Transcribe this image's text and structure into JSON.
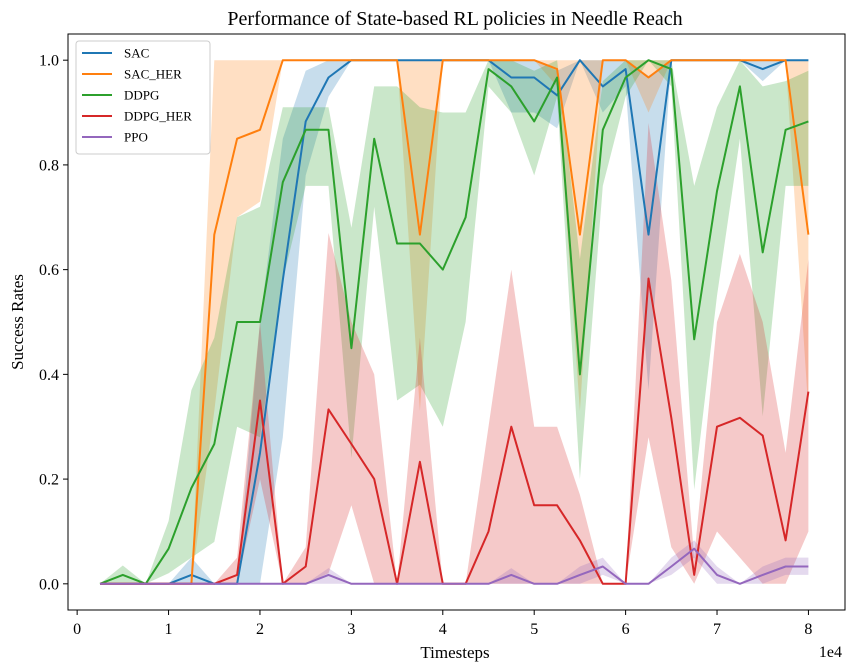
{
  "chart_data": {
    "type": "line",
    "title": "Performance of State-based RL policies in Needle Reach",
    "xlabel": "Timesteps",
    "ylabel": "Success Rates",
    "x_multiplier_label": "1e4",
    "xlim": [
      -0.1,
      8.4
    ],
    "ylim": [
      -0.05,
      1.05
    ],
    "x_ticks": [
      0,
      1,
      2,
      3,
      4,
      5,
      6,
      7,
      8
    ],
    "x_tick_labels": [
      "0",
      "1",
      "2",
      "3",
      "4",
      "5",
      "6",
      "7",
      "8"
    ],
    "y_ticks": [
      0.0,
      0.2,
      0.4,
      0.6,
      0.8,
      1.0
    ],
    "y_tick_labels": [
      "0.0",
      "0.2",
      "0.4",
      "0.6",
      "0.8",
      "1.0"
    ],
    "legend_position": "top-left",
    "grid": false,
    "x": [
      0.25,
      0.5,
      0.75,
      1.0,
      1.25,
      1.5,
      1.75,
      2.0,
      2.25,
      2.5,
      2.75,
      3.0,
      3.25,
      3.5,
      3.75,
      4.0,
      4.25,
      4.5,
      4.75,
      5.0,
      5.25,
      5.5,
      5.75,
      6.0,
      6.25,
      6.5,
      6.75,
      7.0,
      7.25,
      7.5,
      7.75,
      8.0
    ],
    "series": [
      {
        "name": "SAC",
        "color": "#1f77b4",
        "values": [
          0,
          0,
          0,
          0,
          0.017,
          0,
          0,
          0.25,
          0.58,
          0.883,
          0.967,
          1.0,
          1.0,
          1.0,
          1.0,
          1.0,
          1.0,
          1.0,
          0.967,
          0.967,
          0.933,
          1.0,
          0.95,
          0.983,
          0.667,
          1.0,
          1.0,
          1.0,
          1.0,
          0.983,
          1.0,
          1.0
        ],
        "lower": [
          0,
          0,
          0,
          0,
          0,
          0,
          0,
          0,
          0.28,
          0.78,
          0.93,
          1.0,
          1.0,
          1.0,
          1.0,
          1.0,
          1.0,
          1.0,
          0.9,
          0.9,
          0.87,
          1.0,
          0.9,
          0.95,
          0.37,
          1.0,
          1.0,
          1.0,
          1.0,
          0.96,
          1.0,
          1.0
        ],
        "upper": [
          0,
          0,
          0,
          0,
          0.05,
          0,
          0,
          0.5,
          0.85,
          0.98,
          1.0,
          1.0,
          1.0,
          1.0,
          1.0,
          1.0,
          1.0,
          1.0,
          1.0,
          1.0,
          0.98,
          1.0,
          1.0,
          1.0,
          0.97,
          1.0,
          1.0,
          1.0,
          1.0,
          1.0,
          1.0,
          1.0
        ]
      },
      {
        "name": "SAC_HER",
        "color": "#ff7f0e",
        "values": [
          0,
          0,
          0,
          0,
          0,
          0.667,
          0.85,
          0.867,
          1.0,
          1.0,
          1.0,
          1.0,
          1.0,
          1.0,
          0.667,
          1.0,
          1.0,
          1.0,
          1.0,
          1.0,
          0.983,
          0.667,
          1.0,
          1.0,
          0.967,
          1.0,
          1.0,
          1.0,
          1.0,
          1.0,
          1.0,
          0.667
        ],
        "lower": [
          0,
          0,
          0,
          0,
          0,
          0.33,
          0.7,
          0.73,
          1.0,
          1.0,
          1.0,
          1.0,
          1.0,
          1.0,
          0.33,
          1.0,
          1.0,
          1.0,
          1.0,
          1.0,
          0.95,
          0.33,
          1.0,
          1.0,
          0.9,
          1.0,
          1.0,
          1.0,
          1.0,
          1.0,
          1.0,
          0.33
        ],
        "upper": [
          0,
          0,
          0,
          0,
          0,
          1.0,
          1.0,
          1.0,
          1.0,
          1.0,
          1.0,
          1.0,
          1.0,
          1.0,
          1.0,
          1.0,
          1.0,
          1.0,
          1.0,
          1.0,
          1.0,
          1.0,
          1.0,
          1.0,
          1.0,
          1.0,
          1.0,
          1.0,
          1.0,
          1.0,
          1.0,
          1.0
        ]
      },
      {
        "name": "DDPG",
        "color": "#2ca02c",
        "values": [
          0,
          0.017,
          0,
          0.067,
          0.183,
          0.267,
          0.5,
          0.5,
          0.767,
          0.867,
          0.867,
          0.45,
          0.85,
          0.65,
          0.65,
          0.6,
          0.7,
          0.983,
          0.95,
          0.883,
          0.967,
          0.4,
          0.867,
          0.967,
          1.0,
          0.983,
          0.467,
          0.75,
          0.95,
          0.633,
          0.867,
          0.883
        ],
        "lower": [
          0,
          0,
          0,
          0.02,
          0.05,
          0.08,
          0.3,
          0.28,
          0.58,
          0.76,
          0.76,
          0.24,
          0.72,
          0.35,
          0.38,
          0.3,
          0.5,
          0.95,
          0.9,
          0.78,
          0.93,
          0.2,
          0.76,
          0.93,
          1.0,
          0.95,
          0.18,
          0.55,
          0.85,
          0.32,
          0.76,
          0.76
        ],
        "upper": [
          0,
          0.035,
          0,
          0.12,
          0.37,
          0.47,
          0.7,
          0.72,
          0.91,
          0.91,
          0.91,
          0.68,
          0.95,
          0.95,
          0.91,
          0.9,
          0.9,
          1.0,
          1.0,
          0.98,
          1.0,
          0.62,
          0.96,
          1.0,
          1.0,
          1.0,
          0.76,
          0.91,
          1.0,
          0.95,
          0.96,
          0.98
        ]
      },
      {
        "name": "DDPG_HER",
        "color": "#d62728",
        "values": [
          0,
          0,
          0,
          0,
          0,
          0,
          0.017,
          0.35,
          0,
          0.033,
          0.333,
          0.267,
          0.2,
          0,
          0.233,
          0,
          0,
          0.1,
          0.3,
          0.15,
          0.15,
          0.083,
          0,
          0,
          0.583,
          0.317,
          0.017,
          0.3,
          0.317,
          0.283,
          0.083,
          0.367
        ],
        "lower": [
          0,
          0,
          0,
          0,
          0,
          0,
          0,
          0.2,
          0,
          0,
          0.02,
          0.15,
          0,
          0,
          0,
          0,
          0,
          0,
          0,
          0,
          0,
          0,
          0,
          0,
          0.28,
          0.07,
          0,
          0.1,
          0.05,
          0,
          0,
          0.1
        ],
        "upper": [
          0,
          0,
          0,
          0,
          0,
          0,
          0.05,
          0.5,
          0,
          0.07,
          0.67,
          0.5,
          0.4,
          0,
          0.47,
          0,
          0,
          0.3,
          0.6,
          0.3,
          0.3,
          0.17,
          0,
          0,
          0.88,
          0.58,
          0.05,
          0.5,
          0.63,
          0.5,
          0.25,
          0.62
        ]
      },
      {
        "name": "PPO",
        "color": "#9467bd",
        "values": [
          0,
          0,
          0,
          0,
          0,
          0,
          0,
          0,
          0,
          0,
          0.017,
          0,
          0,
          0,
          0,
          0,
          0,
          0,
          0.017,
          0,
          0,
          0.017,
          0.033,
          0,
          0,
          0.033,
          0.067,
          0.017,
          0,
          0.017,
          0.033,
          0.033
        ],
        "lower": [
          0,
          0,
          0,
          0,
          0,
          0,
          0,
          0,
          0,
          0,
          0,
          0,
          0,
          0,
          0,
          0,
          0,
          0,
          0,
          0,
          0,
          0,
          0.017,
          0,
          0,
          0.017,
          0.05,
          0,
          0,
          0,
          0.017,
          0.017
        ],
        "upper": [
          0,
          0,
          0,
          0,
          0,
          0,
          0,
          0,
          0,
          0,
          0.03,
          0,
          0,
          0,
          0,
          0,
          0,
          0,
          0.03,
          0,
          0,
          0.033,
          0.05,
          0,
          0,
          0.05,
          0.083,
          0.033,
          0,
          0.033,
          0.05,
          0.05
        ]
      }
    ]
  }
}
